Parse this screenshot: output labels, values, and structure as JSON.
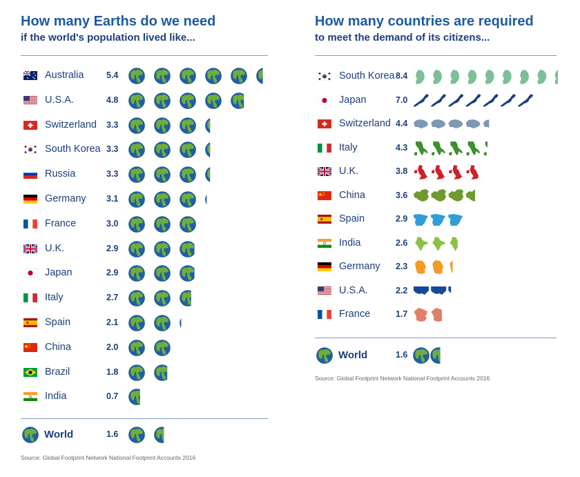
{
  "chart_data": [
    {
      "type": "bar",
      "title": "How many Earths do we need",
      "subtitle": "if the world's population lived like...",
      "icon": "earth-globe",
      "icon_colors": {
        "ocean": "#1e5fa8",
        "land": "#6fae3a"
      },
      "categories": [
        "Australia",
        "U.S.A.",
        "Switzerland",
        "South Korea",
        "Russia",
        "Germany",
        "France",
        "U.K.",
        "Japan",
        "Italy",
        "Spain",
        "China",
        "Brazil",
        "India"
      ],
      "values": [
        5.4,
        4.8,
        3.3,
        3.3,
        3.3,
        3.1,
        3.0,
        2.9,
        2.9,
        2.7,
        2.1,
        2.0,
        1.8,
        0.7
      ],
      "value_labels": [
        "5.4",
        "4.8",
        "3.3",
        "3.3",
        "3.3",
        "3.1",
        "3.0",
        "2.9",
        "2.9",
        "2.7",
        "2.1",
        "2.0",
        "1.8",
        "0.7"
      ],
      "flags": [
        "flag-australia",
        "flag-usa",
        "flag-switzerland",
        "flag-south-korea",
        "flag-russia",
        "flag-germany",
        "flag-france",
        "flag-uk",
        "flag-japan",
        "flag-italy",
        "flag-spain",
        "flag-china",
        "flag-brazil",
        "flag-india"
      ],
      "total": {
        "label": "World",
        "value": 1.6,
        "value_label": "1.6"
      },
      "source": "Source: Global Footprint Network National Footprint Accounts 2016"
    },
    {
      "type": "bar",
      "title": "How many countries are required",
      "subtitle": "to meet the demand of its citizens...",
      "icon": "country-silhouette",
      "categories": [
        "South Korea",
        "Japan",
        "Switzerland",
        "Italy",
        "U.K.",
        "China",
        "Spain",
        "India",
        "Germany",
        "U.S.A.",
        "France"
      ],
      "values": [
        8.4,
        7.0,
        4.4,
        4.3,
        3.8,
        3.6,
        2.9,
        2.6,
        2.3,
        2.2,
        1.7
      ],
      "value_labels": [
        "8.4",
        "7.0",
        "4.4",
        "4.3",
        "3.8",
        "3.6",
        "2.9",
        "2.6",
        "2.3",
        "2.2",
        "1.7"
      ],
      "flags": [
        "flag-south-korea",
        "flag-japan",
        "flag-switzerland",
        "flag-italy",
        "flag-uk",
        "flag-china",
        "flag-spain",
        "flag-india",
        "flag-germany",
        "flag-usa",
        "flag-france"
      ],
      "icon_colors": [
        "#7dbf96",
        "#1c3f7a",
        "#7e97b3",
        "#3e8f2e",
        "#cc2229",
        "#6f9a2e",
        "#2f9fd6",
        "#8cc046",
        "#f39c24",
        "#174a96",
        "#e07f6a"
      ],
      "total": {
        "label": "World",
        "value": 1.6,
        "value_label": "1.6"
      },
      "source": "Source: Global Footprint Network National Footprint Accounts 2016"
    }
  ]
}
